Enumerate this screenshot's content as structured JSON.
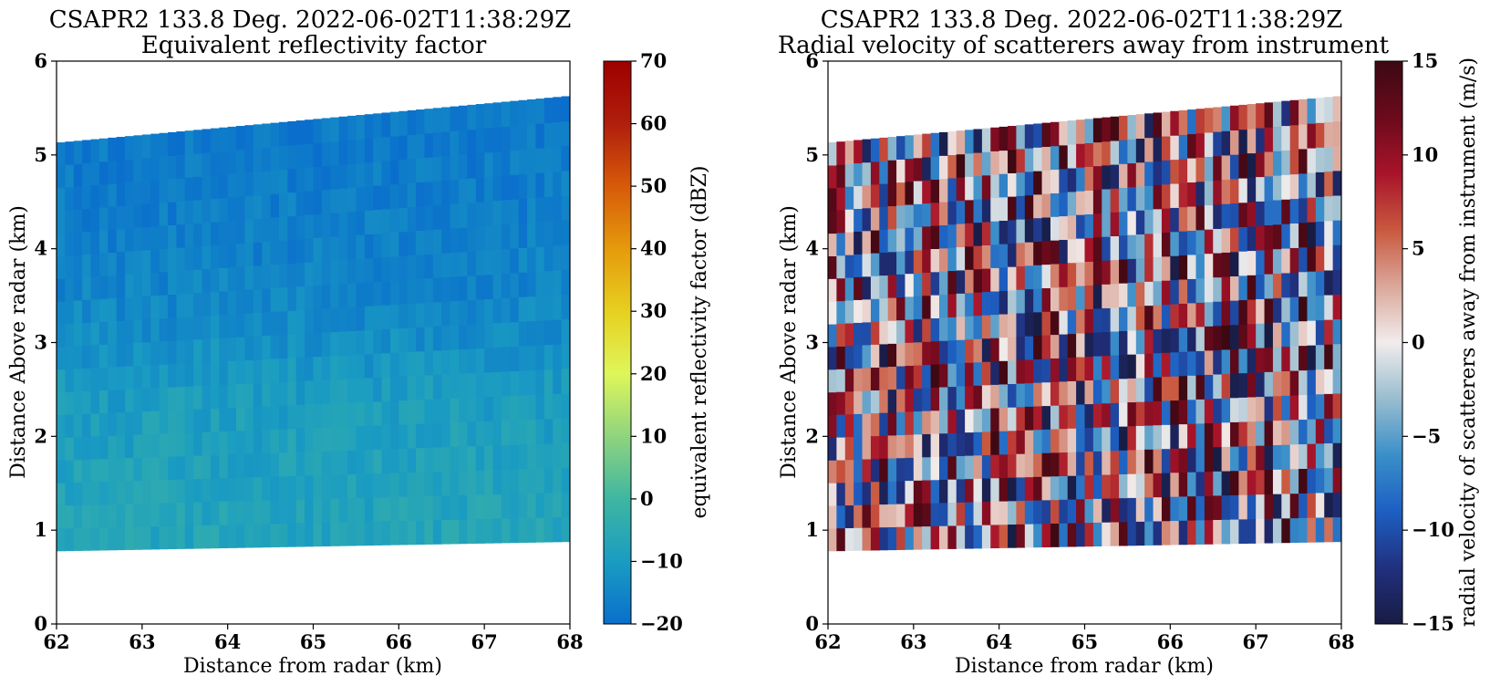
{
  "chart_data": [
    {
      "type": "heatmap",
      "title": "CSAPR2 133.8 Deg. 2022-06-02T11:38:29Z",
      "subtitle": "Equivalent reflectivity factor",
      "xlabel": "Distance from radar (km)",
      "ylabel": "Distance Above radar  (km)",
      "xlim": [
        62,
        68
      ],
      "ylim": [
        0,
        6
      ],
      "xticks": [
        "62",
        "63",
        "64",
        "65",
        "66",
        "67",
        "68"
      ],
      "yticks": [
        "0",
        "1",
        "2",
        "3",
        "4",
        "5",
        "6"
      ],
      "data_extent": {
        "x": [
          62,
          68
        ],
        "bottom_height_km": [
          0.78,
          0.88
        ],
        "top_height_km": [
          5.13,
          5.63
        ]
      },
      "field_profile": {
        "heights_km": [
          0.8,
          1.5,
          2.2,
          2.7,
          3.0,
          3.5,
          4.5,
          5.5
        ],
        "mean_value_dbz": [
          -7,
          -8,
          -9,
          -11,
          -13,
          -15,
          -17,
          -18
        ]
      },
      "colorbar": {
        "label": "equivalent reflectivity factor (dBZ)",
        "min": -20,
        "max": 70,
        "ticks": [
          "−20",
          "−10",
          "0",
          "10",
          "20",
          "30",
          "40",
          "50",
          "60",
          "70"
        ],
        "colormap": "HomeyerRainbow",
        "colors": [
          "#0a6fcc",
          "#1a9cc2",
          "#3fb6a1",
          "#8fd47e",
          "#dff65a",
          "#e6d020",
          "#e59a0c",
          "#d75a0a",
          "#b01e0c",
          "#9e0000"
        ]
      }
    },
    {
      "type": "heatmap",
      "title": "CSAPR2 133.8 Deg. 2022-06-02T11:38:29Z",
      "subtitle": "Radial velocity of scatterers away from instrument",
      "xlabel": "Distance from radar (km)",
      "ylabel": "Distance Above radar  (km)",
      "xlim": [
        62,
        68
      ],
      "ylim": [
        0,
        6
      ],
      "xticks": [
        "62",
        "63",
        "64",
        "65",
        "66",
        "67",
        "68"
      ],
      "yticks": [
        "0",
        "1",
        "2",
        "3",
        "4",
        "5",
        "6"
      ],
      "data_extent": {
        "x": [
          62,
          68
        ],
        "bottom_height_km": [
          0.78,
          0.88
        ],
        "top_height_km": [
          5.13,
          5.63
        ]
      },
      "field_profile": {
        "value_range_ms": [
          -15,
          15
        ],
        "pattern": "noise"
      },
      "colorbar": {
        "label": "radial velocity of scatterers away from instrument (m/s)",
        "min": -15,
        "max": 15,
        "ticks": [
          "−15",
          "−10",
          "−5",
          "0",
          "5",
          "10",
          "15"
        ],
        "colormap": "balance",
        "colors": [
          "#181c43",
          "#21307f",
          "#1d5fc2",
          "#3a8fc9",
          "#99bdcf",
          "#f1ecec",
          "#dba79a",
          "#c9583f",
          "#a8142a",
          "#6b0a1c",
          "#3c0912"
        ]
      }
    }
  ]
}
